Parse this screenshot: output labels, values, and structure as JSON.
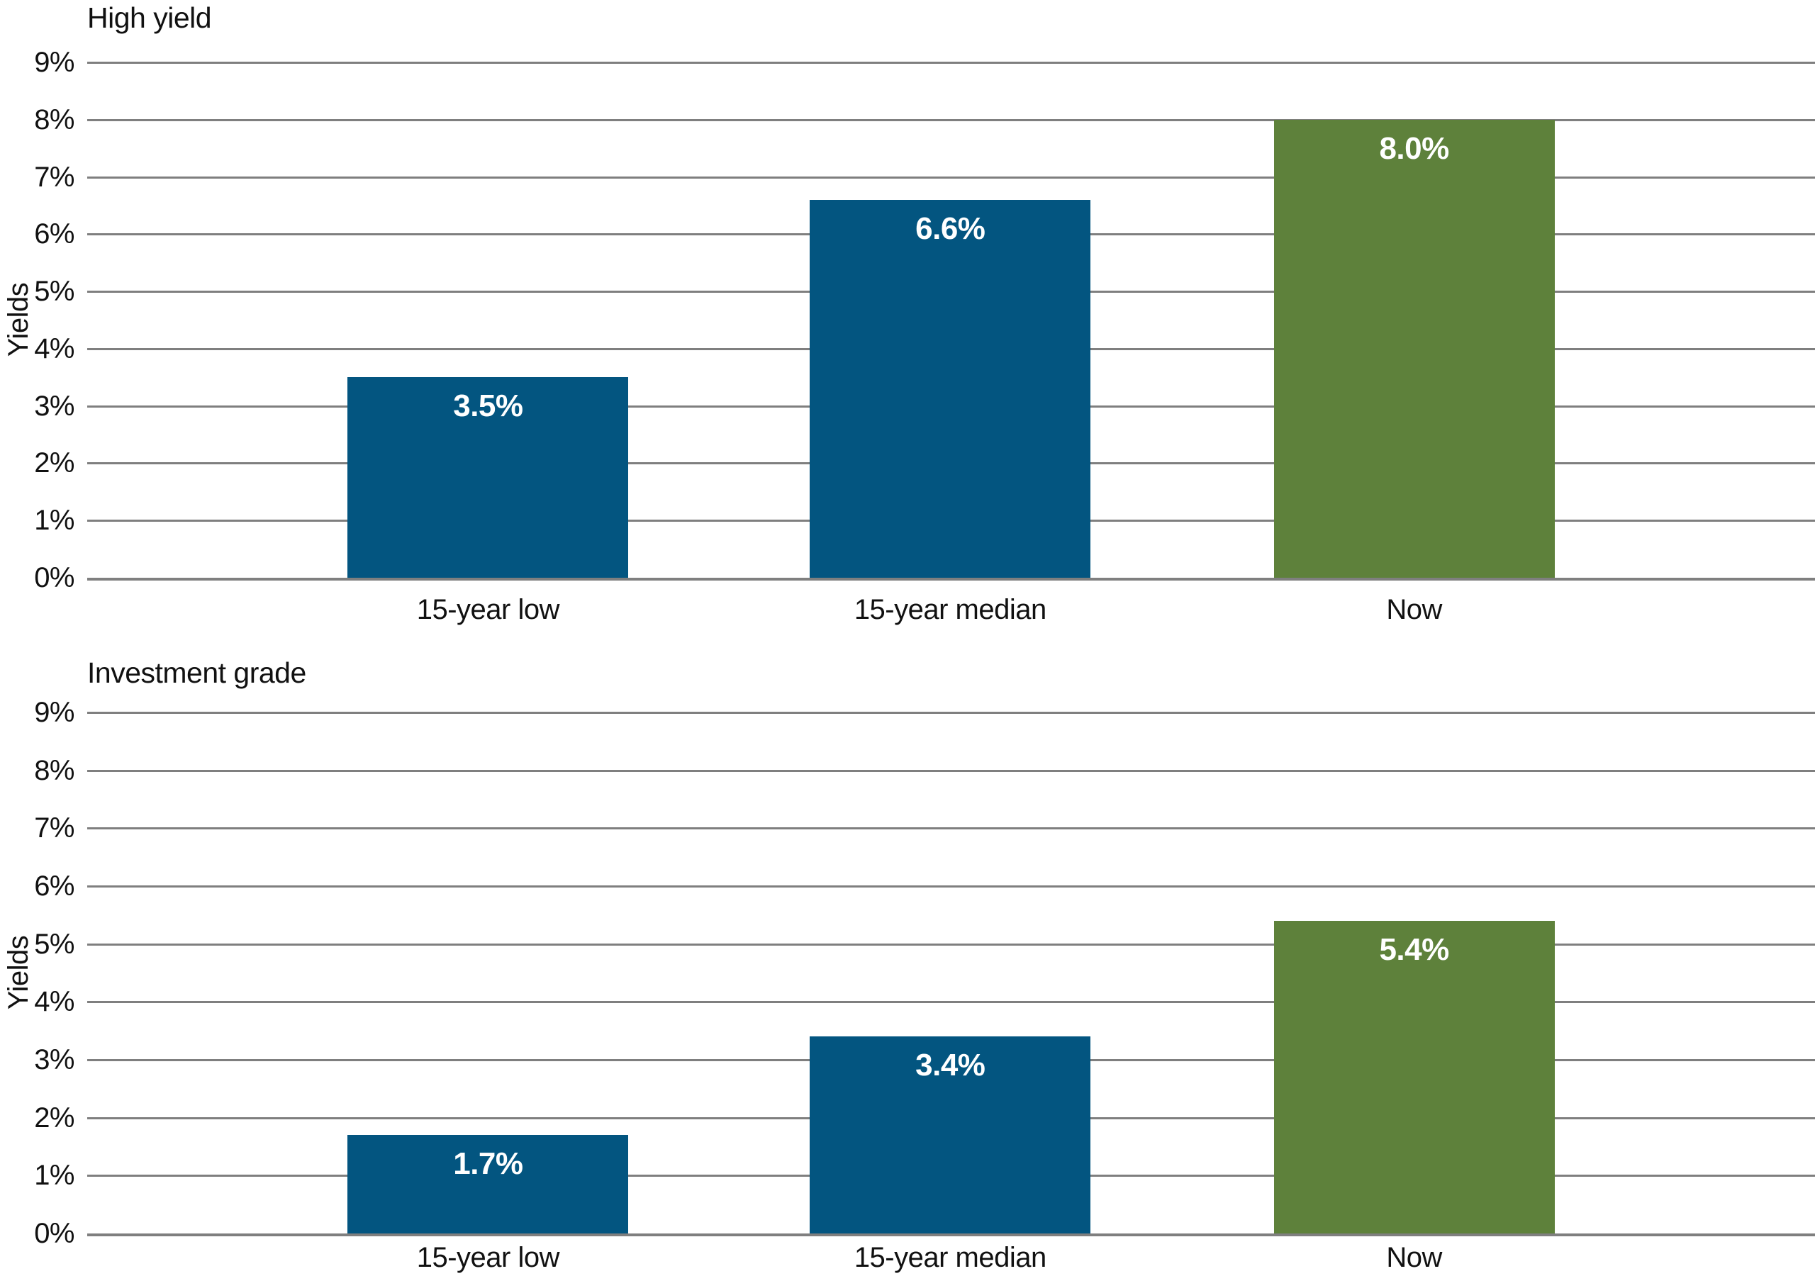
{
  "page": {
    "background": "#ffffff"
  },
  "colors": {
    "bar_blue": "#035580",
    "bar_green": "#5e813b",
    "gridline": "#7f7f7f",
    "text": "#111111",
    "bar_label_text": "#ffffff"
  },
  "chart_data": [
    {
      "type": "bar",
      "title": "High yield",
      "ylabel": "Yields",
      "xlabel": "",
      "categories": [
        "15-year low",
        "15-year median",
        "Now"
      ],
      "values": [
        3.5,
        6.6,
        8.0
      ],
      "value_labels": [
        "3.5%",
        "6.6%",
        "8.0%"
      ],
      "bar_colors": [
        "#035580",
        "#035580",
        "#5e813b"
      ],
      "ylim": [
        0,
        9
      ],
      "ytick_step": 1,
      "ytick_labels": [
        "0%",
        "1%",
        "2%",
        "3%",
        "4%",
        "5%",
        "6%",
        "7%",
        "8%",
        "9%"
      ],
      "grid": "horizontal",
      "legend": "none"
    },
    {
      "type": "bar",
      "title": "Investment grade",
      "ylabel": "Yields",
      "xlabel": "",
      "categories": [
        "15-year low",
        "15-year median",
        "Now"
      ],
      "values": [
        1.7,
        3.4,
        5.4
      ],
      "value_labels": [
        "1.7%",
        "3.4%",
        "5.4%"
      ],
      "bar_colors": [
        "#035580",
        "#035580",
        "#5e813b"
      ],
      "ylim": [
        0,
        9
      ],
      "ytick_step": 1,
      "ytick_labels": [
        "0%",
        "1%",
        "2%",
        "3%",
        "4%",
        "5%",
        "6%",
        "7%",
        "8%",
        "9%"
      ],
      "grid": "horizontal",
      "legend": "none"
    }
  ]
}
